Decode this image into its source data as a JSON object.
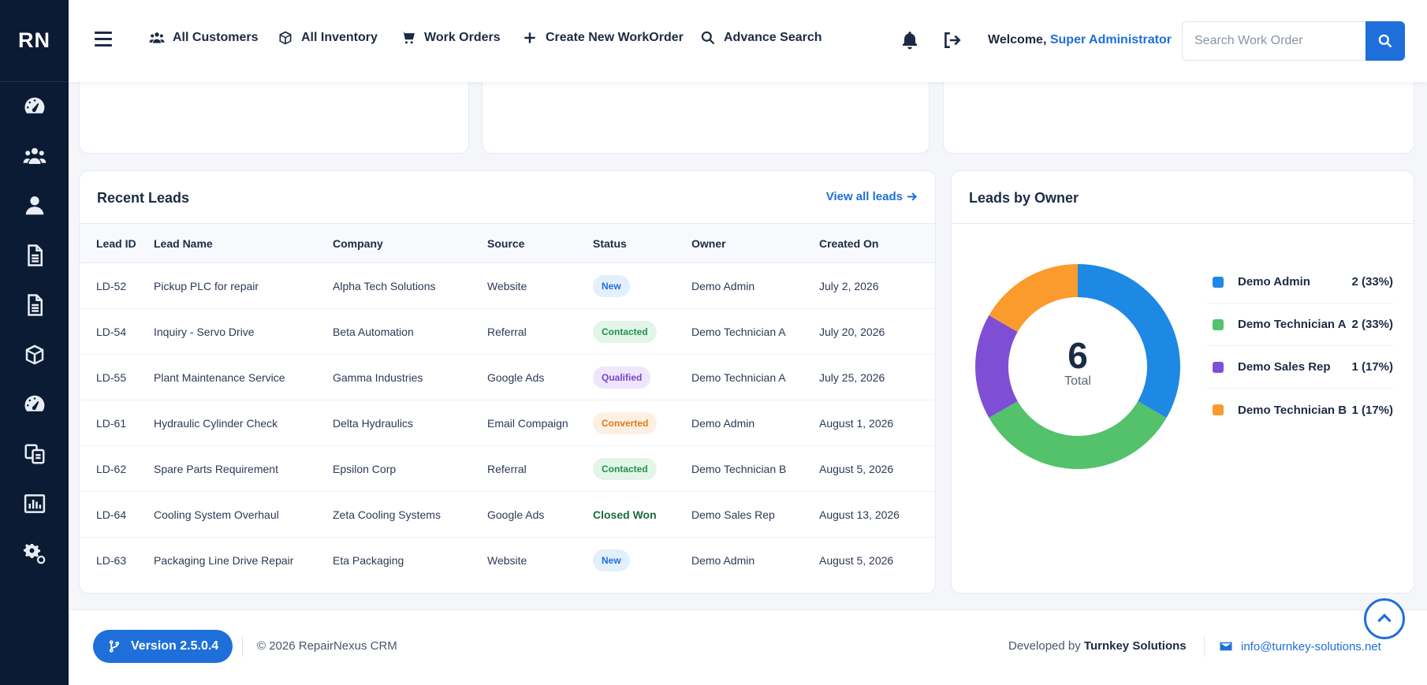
{
  "brand": "RN",
  "sidebar": {
    "icons": [
      "dashboard-icon",
      "customers-icon",
      "user-icon",
      "document-icon",
      "document-list-icon",
      "inventory-box-icon",
      "gauge-icon",
      "copy-docs-icon",
      "reports-chart-icon",
      "settings-gears-icon"
    ]
  },
  "nav": {
    "all_customers": "All Customers",
    "all_inventory": "All Inventory",
    "work_orders": "Work Orders",
    "create_workorder": "Create New WorkOrder",
    "advance_search": "Advance Search"
  },
  "header": {
    "welcome": "Welcome,",
    "user": "Super Administrator",
    "search_placeholder": "Search Work Order"
  },
  "recent_leads": {
    "title": "Recent Leads",
    "view_all": "View all leads",
    "columns": [
      "Lead ID",
      "Lead Name",
      "Company",
      "Source",
      "Status",
      "Owner",
      "Created On"
    ],
    "rows": [
      {
        "id": "LD-52",
        "name": "Pickup PLC for repair",
        "company": "Alpha Tech Solutions",
        "source": "Website",
        "status": "New",
        "owner": "Demo Admin",
        "created": "July 2, 2026"
      },
      {
        "id": "LD-54",
        "name": "Inquiry - Servo Drive",
        "company": "Beta Automation",
        "source": "Referral",
        "status": "Contacted",
        "owner": "Demo Technician A",
        "created": "July 20, 2026"
      },
      {
        "id": "LD-55",
        "name": "Plant Maintenance Service",
        "company": "Gamma Industries",
        "source": "Google Ads",
        "status": "Qualified",
        "owner": "Demo Technician A",
        "created": "July 25, 2026"
      },
      {
        "id": "LD-61",
        "name": "Hydraulic Cylinder Check",
        "company": "Delta Hydraulics",
        "source": "Email Compaign",
        "status": "Converted",
        "owner": "Demo Admin",
        "created": "August 1, 2026"
      },
      {
        "id": "LD-62",
        "name": "Spare Parts Requirement",
        "company": "Epsilon Corp",
        "source": "Referral",
        "status": "Contacted",
        "owner": "Demo Technician B",
        "created": "August 5, 2026"
      },
      {
        "id": "LD-64",
        "name": "Cooling System Overhaul",
        "company": "Zeta Cooling Systems",
        "source": "Google Ads",
        "status": "Closed Won",
        "owner": "Demo Sales Rep",
        "created": "August 13, 2026"
      },
      {
        "id": "LD-63",
        "name": "Packaging Line Drive Repair",
        "company": "Eta Packaging",
        "source": "Website",
        "status": "New",
        "owner": "Demo Admin",
        "created": "August 5, 2026"
      }
    ]
  },
  "status_styles": {
    "New": {
      "bg": "#e3effd",
      "fg": "#1e6fd9"
    },
    "Contacted": {
      "bg": "#e2f5e8",
      "fg": "#23914a"
    },
    "Qualified": {
      "bg": "#efe6fb",
      "fg": "#7a45c9"
    },
    "Converted": {
      "bg": "#fdf0e2",
      "fg": "#e0791b"
    },
    "Closed Won": {
      "bg": "",
      "fg": "#1a6b3a"
    }
  },
  "leads_by_owner": {
    "title": "Leads by Owner",
    "total": "6",
    "total_label": "Total"
  },
  "chart_data": {
    "type": "pie",
    "title": "Leads by Owner",
    "categories": [
      "Demo Admin",
      "Demo Technician A",
      "Demo Sales Rep",
      "Demo Technician B"
    ],
    "values": [
      2,
      2,
      1,
      1
    ],
    "labels": [
      "2 (33%)",
      "2 (33%)",
      "1 (17%)",
      "1 (17%)"
    ],
    "colors": [
      "#1e88e5",
      "#53c26b",
      "#7e4fd4",
      "#fb9a2d"
    ],
    "legend_position": "right"
  },
  "footer": {
    "version": "Version 2.5.0.4",
    "copyright": "© 2026 RepairNexus CRM",
    "developed_by": "Developed by",
    "company": "Turnkey Solutions",
    "email": "info@turnkey-solutions.net"
  }
}
